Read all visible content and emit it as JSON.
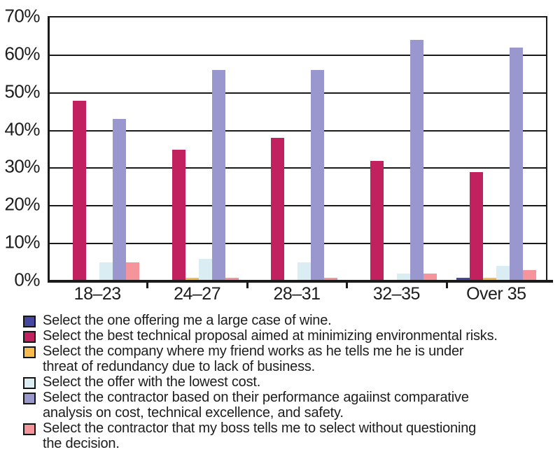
{
  "chart_data": {
    "type": "bar",
    "title": "",
    "xlabel": "",
    "ylabel": "",
    "categories": [
      "18–23",
      "24–27",
      "28–31",
      "32–35",
      "Over 35"
    ],
    "series": [
      {
        "name": "Select the one offering me a large case of wine.",
        "color": "#4647a0",
        "values": [
          0,
          0,
          0,
          0,
          1
        ]
      },
      {
        "name": "Select the best technical proposal aimed at minimizing environmental risks.",
        "color": "#c2215f",
        "values": [
          48,
          35,
          38,
          32,
          29
        ]
      },
      {
        "name": "Select the company where my friend works as he tells me he is under threat of redundancy due to lack of business.",
        "color": "#f7bb4f",
        "values": [
          0,
          1,
          0,
          0,
          1
        ]
      },
      {
        "name": "Select the offer with the lowest cost.",
        "color": "#d9edf3",
        "values": [
          5,
          6,
          5,
          2,
          4
        ]
      },
      {
        "name": "Select the contractor based on their performance agaiinst comparative analysis on cost, technical excellence, and safety.",
        "color": "#9a97ce",
        "values": [
          43,
          56,
          56,
          64,
          62
        ]
      },
      {
        "name": "Select the contractor that my boss tells me to select without questioning the decision.",
        "color": "#f5949b",
        "values": [
          5,
          1,
          1,
          2,
          3
        ]
      }
    ],
    "y_axis": {
      "min": 0,
      "max": 70,
      "tick_step": 10,
      "grid": true,
      "tick_labels": [
        "70%",
        "60%",
        "50%",
        "40%",
        "30%",
        "20%",
        "10%",
        "0%"
      ]
    },
    "legend": {
      "position": "bottom",
      "items": [
        {
          "lines": [
            "Select the one offering me a large case of wine."
          ]
        },
        {
          "lines": [
            "Select the best technical proposal aimed at minimizing environmental risks."
          ]
        },
        {
          "lines": [
            "Select the company where my friend works as he tells me he is under",
            "threat of redundancy due to lack of business."
          ]
        },
        {
          "lines": [
            "Select the offer with the lowest cost."
          ]
        },
        {
          "lines": [
            "Select the contractor based on their performance agaiinst comparative",
            "analysis on cost, technical excellence, and safety."
          ]
        },
        {
          "lines": [
            "Select the contractor that my boss tells me to select without questioning",
            "the decision."
          ]
        }
      ]
    }
  }
}
